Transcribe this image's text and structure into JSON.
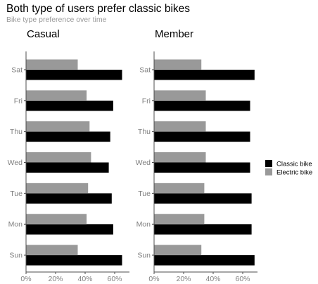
{
  "chart_data": {
    "type": "bar",
    "orientation": "horizontal",
    "title": "Both type of users prefer classic bikes",
    "subtitle": "Bike type preference over time",
    "categories": [
      "Sun",
      "Mon",
      "Tue",
      "Wed",
      "Thu",
      "Fri",
      "Sat"
    ],
    "xlim": [
      0,
      0.7
    ],
    "xticks": [
      {
        "value": 0,
        "label": "0%"
      },
      {
        "value": 0.2,
        "label": "20%"
      },
      {
        "value": 0.4,
        "label": "40%"
      },
      {
        "value": 0.6,
        "label": "60%"
      }
    ],
    "grid": false,
    "legend_position": "right",
    "legend": [
      {
        "name": "Classic bike",
        "color": "#000000"
      },
      {
        "name": "Electric bike",
        "color": "#999999"
      }
    ],
    "facets": [
      {
        "name": "Casual",
        "series": [
          {
            "name": "Classic bike",
            "color": "#000000",
            "values": [
              0.65,
              0.59,
              0.58,
              0.56,
              0.57,
              0.59,
              0.65
            ]
          },
          {
            "name": "Electric bike",
            "color": "#999999",
            "values": [
              0.35,
              0.41,
              0.42,
              0.44,
              0.43,
              0.41,
              0.35
            ]
          }
        ]
      },
      {
        "name": "Member",
        "series": [
          {
            "name": "Classic bike",
            "color": "#000000",
            "values": [
              0.68,
              0.66,
              0.66,
              0.65,
              0.65,
              0.65,
              0.68
            ]
          },
          {
            "name": "Electric bike",
            "color": "#999999",
            "values": [
              0.32,
              0.34,
              0.34,
              0.35,
              0.35,
              0.35,
              0.32
            ]
          }
        ]
      }
    ]
  }
}
